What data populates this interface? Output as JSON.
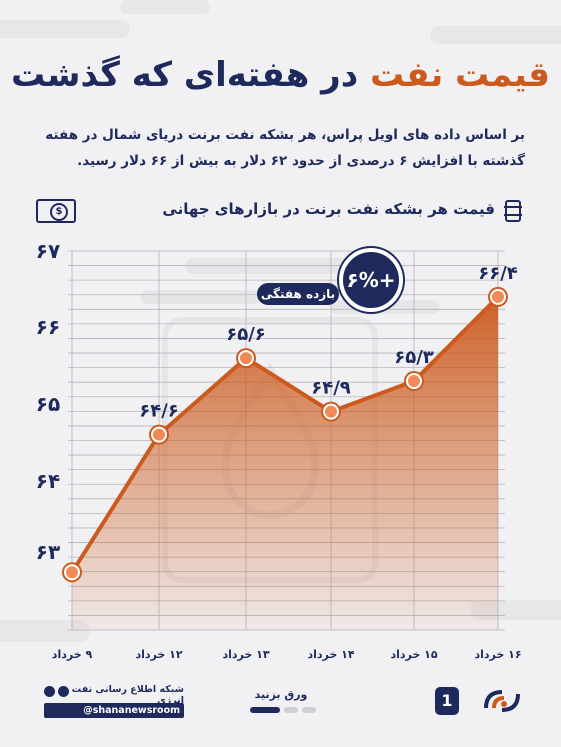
{
  "header": {
    "title_part1": "قیمت نفت",
    "title_part2": "در هفته‌ای که گذشت"
  },
  "intro": {
    "line1": "بر اساس داده های اویل پراس، هر بشکه نفت برنت دریای شمال در هفته",
    "line2": "گذشته با افزایش ۶ درصدی از حدود ۶۲ دلار به بیش از ۶۶ دلار رسید."
  },
  "subheader": {
    "text": "قیمت هر بشکه نفت برنت در بازارهای جهانی",
    "left_icon": "money-icon",
    "right_icon": "barrel-icon",
    "money_symbol": "$",
    "barrel_symbol": "o"
  },
  "badge": {
    "value": "۶%+",
    "label": "بازده هفتگی"
  },
  "colors": {
    "accent": "#cc5a1e",
    "navy": "#1f2a5c",
    "marker_fill": "#f08a56"
  },
  "chart_data": {
    "type": "area",
    "categories": [
      "۹ خرداد",
      "۱۲ خرداد",
      "۱۳ خرداد",
      "۱۴ خرداد",
      "۱۵ خرداد",
      "۱۶ خرداد"
    ],
    "values": [
      62.8,
      64.6,
      65.6,
      64.9,
      65.3,
      66.4
    ],
    "data_labels": [
      "",
      "۶۴/۶",
      "۶۵/۶",
      "۶۴/۹",
      "۶۵/۳",
      "۶۶/۴"
    ],
    "y_ticks": [
      63,
      64,
      65,
      66,
      67
    ],
    "y_tick_labels": [
      "۶۳",
      "۶۴",
      "۶۵",
      "۶۶",
      "۶۷"
    ],
    "ylim": [
      62.8,
      67
    ],
    "grid": true,
    "title": "قیمت هر بشکه نفت برنت در بازارهای جهانی"
  },
  "footer": {
    "network": "شبکه اطلاع رسانی نفت و انرژی",
    "handle": "@shananewsroom",
    "swipe": "ورق بزنید",
    "page": "1"
  }
}
